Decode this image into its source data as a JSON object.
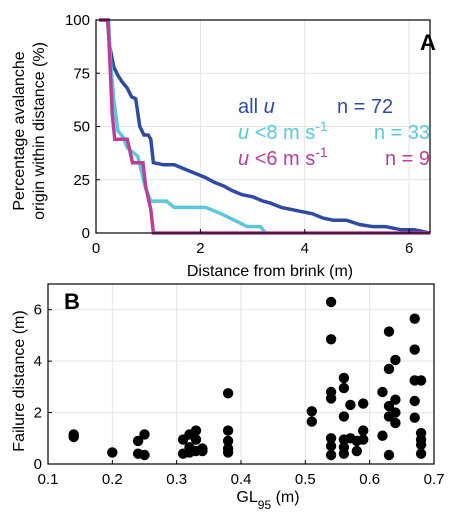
{
  "chart_data": [
    {
      "panel_label": "A",
      "type": "line",
      "ylabel_line1": "Percentage avalanche",
      "ylabel_line2": "origin within distance (%)",
      "xlabel": "Distance from brink (m)",
      "xlim": [
        0,
        6.4
      ],
      "ylim": [
        0,
        100
      ],
      "xticks": [
        0,
        2,
        4,
        6
      ],
      "yticks": [
        0,
        25,
        50,
        75,
        100
      ],
      "grid": true,
      "legend": [
        {
          "text": "all",
          "var": "u",
          "n_text": "n = 72",
          "color": "#2e4ba1"
        },
        {
          "text": "<8 m s",
          "var": "u",
          "sup": "-1",
          "n_text": "n = 33",
          "color": "#5ac8d8"
        },
        {
          "text": "<6 m s",
          "var": "u",
          "sup": "-1",
          "n_text": "n = 9",
          "color": "#b8409b"
        }
      ],
      "series": [
        {
          "color": "#2e4ba1",
          "x": [
            0.06,
            0.22,
            0.26,
            0.3,
            0.34,
            0.42,
            0.5,
            0.6,
            0.68,
            0.76,
            0.84,
            0.92,
            1.0,
            1.05,
            1.1,
            1.3,
            1.5,
            1.7,
            1.9,
            2.1,
            2.25,
            2.45,
            2.6,
            2.8,
            3.0,
            3.2,
            3.35,
            3.55,
            3.75,
            3.95,
            4.15,
            4.35,
            4.55,
            4.8,
            5.05,
            5.3,
            5.55,
            5.85,
            6.1,
            6.4
          ],
          "y": [
            100,
            100,
            88,
            83,
            78,
            74,
            71,
            68,
            64,
            63,
            50,
            46,
            46,
            44,
            33,
            32,
            32,
            30,
            28,
            26,
            24,
            22,
            20,
            18,
            17,
            15,
            14,
            12,
            11,
            10,
            9,
            7,
            6,
            6,
            4,
            3,
            3,
            1.5,
            1.5,
            0
          ]
        },
        {
          "color": "#5ac8d8",
          "x": [
            0.06,
            0.24,
            0.28,
            0.34,
            0.42,
            0.52,
            0.6,
            0.8,
            0.95,
            1.05,
            1.35,
            1.5,
            2.1,
            2.4,
            2.65,
            2.9,
            3.15,
            3.25
          ],
          "y": [
            100,
            100,
            80,
            63,
            48,
            45,
            40,
            36,
            21,
            15,
            15,
            12,
            12,
            9,
            6,
            3,
            3,
            0
          ]
        },
        {
          "color": "#b8409b",
          "x": [
            0.06,
            0.23,
            0.27,
            0.31,
            0.36,
            0.6,
            0.7,
            0.9,
            0.95,
            1.05,
            1.1,
            6.4
          ],
          "y": [
            100,
            100,
            78,
            56,
            44,
            44,
            33,
            33,
            22,
            11,
            0,
            0
          ]
        }
      ]
    },
    {
      "panel_label": "B",
      "type": "scatter",
      "ylabel": "Failure distance (m)",
      "xlabel_main": "GL",
      "xlabel_sub": "95",
      "xlabel_unit": " (m)",
      "xlim": [
        0.1,
        0.7
      ],
      "ylim": [
        0,
        7
      ],
      "xticks": [
        0.1,
        0.2,
        0.3,
        0.4,
        0.5,
        0.6,
        0.7
      ],
      "yticks": [
        0,
        2,
        4,
        6
      ],
      "grid": true,
      "color": "#000000",
      "points": [
        [
          0.14,
          1.15
        ],
        [
          0.14,
          1.05
        ],
        [
          0.2,
          0.45
        ],
        [
          0.24,
          0.9
        ],
        [
          0.24,
          0.4
        ],
        [
          0.25,
          1.15
        ],
        [
          0.25,
          0.35
        ],
        [
          0.31,
          0.95
        ],
        [
          0.31,
          0.4
        ],
        [
          0.32,
          1.15
        ],
        [
          0.32,
          0.65
        ],
        [
          0.32,
          0.45
        ],
        [
          0.33,
          1.3
        ],
        [
          0.33,
          0.95
        ],
        [
          0.33,
          0.5
        ],
        [
          0.34,
          0.5
        ],
        [
          0.34,
          0.6
        ],
        [
          0.38,
          2.75
        ],
        [
          0.38,
          1.3
        ],
        [
          0.38,
          0.9
        ],
        [
          0.38,
          0.6
        ],
        [
          0.38,
          0.45
        ],
        [
          0.51,
          2.05
        ],
        [
          0.51,
          1.65
        ],
        [
          0.54,
          6.3
        ],
        [
          0.54,
          4.85
        ],
        [
          0.54,
          2.8
        ],
        [
          0.54,
          2.55
        ],
        [
          0.54,
          1.0
        ],
        [
          0.54,
          0.7
        ],
        [
          0.54,
          0.35
        ],
        [
          0.56,
          3.35
        ],
        [
          0.56,
          2.95
        ],
        [
          0.56,
          1.85
        ],
        [
          0.56,
          0.95
        ],
        [
          0.56,
          0.65
        ],
        [
          0.56,
          0.4
        ],
        [
          0.57,
          2.3
        ],
        [
          0.57,
          1.0
        ],
        [
          0.58,
          0.9
        ],
        [
          0.58,
          0.5
        ],
        [
          0.59,
          2.35
        ],
        [
          0.59,
          1.3
        ],
        [
          0.59,
          0.95
        ],
        [
          0.62,
          2.8
        ],
        [
          0.62,
          1.1
        ],
        [
          0.63,
          5.15
        ],
        [
          0.63,
          3.7
        ],
        [
          0.63,
          2.25
        ],
        [
          0.63,
          1.85
        ],
        [
          0.63,
          0.35
        ],
        [
          0.64,
          4.05
        ],
        [
          0.64,
          2.5
        ],
        [
          0.64,
          2.0
        ],
        [
          0.64,
          1.6
        ],
        [
          0.67,
          5.65
        ],
        [
          0.67,
          4.45
        ],
        [
          0.67,
          3.25
        ],
        [
          0.67,
          2.45
        ],
        [
          0.67,
          1.8
        ],
        [
          0.68,
          3.25
        ],
        [
          0.68,
          1.2
        ],
        [
          0.68,
          0.95
        ],
        [
          0.68,
          0.75
        ],
        [
          0.68,
          0.4
        ]
      ]
    }
  ]
}
